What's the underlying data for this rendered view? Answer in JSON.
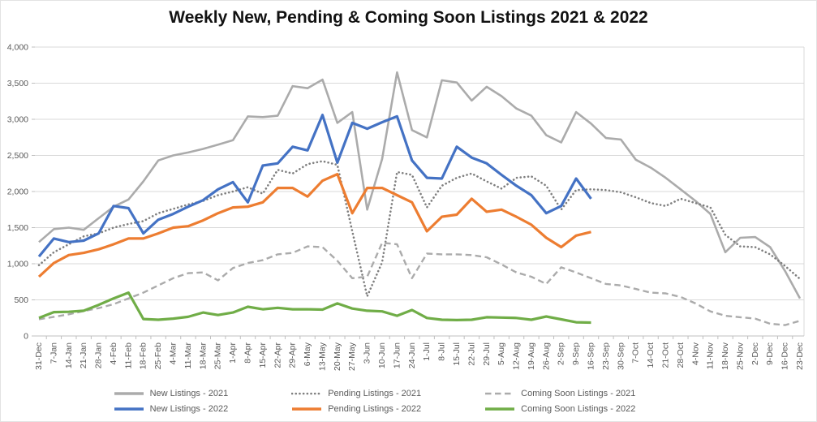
{
  "title": "Weekly New, Pending & Coming Soon Listings 2021 & 2022",
  "chart_data": {
    "type": "line",
    "title": "Weekly New, Pending & Coming Soon Listings 2021 & 2022",
    "grid": true,
    "legend_position": "bottom",
    "x_axis": {
      "label_rotation": -90
    },
    "y_axis": {
      "min": 0,
      "max": 4000,
      "step": 500,
      "tick_labels": [
        "4,000",
        "3,500",
        "3,000",
        "2,500",
        "2,000",
        "1,500",
        "1,000",
        "500",
        "0"
      ]
    },
    "categories": [
      "31-Dec",
      "7-Jan",
      "14-Jan",
      "21-Jan",
      "28-Jan",
      "4-Feb",
      "11-Feb",
      "18-Feb",
      "25-Feb",
      "4-Mar",
      "11-Mar",
      "18-Mar",
      "25-Mar",
      "1-Apr",
      "8-Apr",
      "15-Apr",
      "22-Apr",
      "29-Apr",
      "6-May",
      "13-May",
      "20-May",
      "27-May",
      "3-Jun",
      "10-Jun",
      "17-Jun",
      "24-Jun",
      "1-Jul",
      "8-Jul",
      "15-Jul",
      "22-Jul",
      "29-Jul",
      "5-Aug",
      "12-Aug",
      "19-Aug",
      "26-Aug",
      "2-Sep",
      "9-Sep",
      "16-Sep",
      "23-Sep",
      "30-Sep",
      "7-Oct",
      "14-Oct",
      "21-Oct",
      "28-Oct",
      "4-Nov",
      "11-Nov",
      "18-Nov",
      "25-Nov",
      "2-Dec",
      "9-Dec",
      "16-Dec",
      "23-Dec"
    ],
    "series": [
      {
        "name": "New Listings - 2021",
        "color": "#ababab",
        "line_style": "solid",
        "width": 2.6,
        "values": [
          1300,
          1480,
          1500,
          1470,
          1630,
          1790,
          1890,
          2140,
          2430,
          2500,
          2540,
          2590,
          2650,
          2710,
          3040,
          3030,
          3050,
          3460,
          3430,
          3550,
          2950,
          3100,
          1750,
          2450,
          3650,
          2850,
          2750,
          3540,
          3510,
          3260,
          3450,
          3320,
          3150,
          3050,
          2780,
          2680,
          3100,
          2940,
          2740,
          2720,
          2440,
          2330,
          2190,
          2030,
          1870,
          1690,
          1160,
          1360,
          1370,
          1230,
          900,
          520
        ]
      },
      {
        "name": "Pending Listings - 2021",
        "color": "#7f7f7f",
        "line_style": "dotted",
        "width": 2.6,
        "values": [
          980,
          1160,
          1270,
          1380,
          1420,
          1500,
          1550,
          1590,
          1700,
          1760,
          1820,
          1870,
          1950,
          2000,
          2060,
          1970,
          2300,
          2250,
          2380,
          2420,
          2370,
          1450,
          550,
          1020,
          2270,
          2230,
          1780,
          2080,
          2190,
          2250,
          2140,
          2040,
          2190,
          2210,
          2080,
          1750,
          2020,
          2030,
          2020,
          1990,
          1920,
          1840,
          1800,
          1900,
          1840,
          1780,
          1400,
          1240,
          1230,
          1130,
          970,
          790
        ]
      },
      {
        "name": "Coming Soon Listings - 2021",
        "color": "#ababab",
        "line_style": "dashed",
        "width": 2.4,
        "values": [
          230,
          265,
          300,
          345,
          385,
          440,
          520,
          600,
          700,
          800,
          870,
          880,
          770,
          940,
          1010,
          1050,
          1130,
          1150,
          1240,
          1230,
          1040,
          800,
          820,
          1290,
          1270,
          800,
          1140,
          1130,
          1130,
          1120,
          1090,
          990,
          880,
          820,
          720,
          950,
          880,
          800,
          720,
          700,
          650,
          600,
          590,
          540,
          450,
          340,
          280,
          260,
          240,
          170,
          150,
          210
        ]
      },
      {
        "name": "New Listings - 2022",
        "color": "#4472c4",
        "line_style": "solid",
        "width": 3.2,
        "values": [
          1100,
          1350,
          1300,
          1320,
          1420,
          1800,
          1770,
          1420,
          1610,
          1690,
          1790,
          1880,
          2030,
          2130,
          1850,
          2360,
          2390,
          2620,
          2570,
          3060,
          2400,
          2950,
          2870,
          2960,
          3040,
          2430,
          2190,
          2180,
          2620,
          2470,
          2390,
          2230,
          2080,
          1950,
          1700,
          1800,
          2180,
          1900
        ]
      },
      {
        "name": "Pending Listings - 2022",
        "color": "#ed7d31",
        "line_style": "solid",
        "width": 3.2,
        "values": [
          820,
          1010,
          1120,
          1150,
          1200,
          1270,
          1350,
          1350,
          1420,
          1500,
          1520,
          1600,
          1700,
          1780,
          1790,
          1850,
          2050,
          2050,
          1930,
          2150,
          2240,
          1700,
          2050,
          2050,
          1950,
          1850,
          1450,
          1650,
          1680,
          1900,
          1720,
          1750,
          1650,
          1540,
          1360,
          1230,
          1390,
          1440
        ]
      },
      {
        "name": "Coming Soon Listings - 2022",
        "color": "#70ad47",
        "line_style": "solid",
        "width": 3.2,
        "values": [
          250,
          330,
          335,
          350,
          430,
          520,
          600,
          235,
          225,
          240,
          265,
          325,
          290,
          325,
          405,
          370,
          390,
          370,
          370,
          365,
          450,
          380,
          350,
          340,
          280,
          360,
          250,
          225,
          220,
          225,
          260,
          255,
          250,
          225,
          270,
          230,
          190,
          185
        ]
      }
    ],
    "legend_rows": [
      [
        "New Listings - 2021",
        "Pending Listings - 2021",
        "Coming Soon Listings - 2021"
      ],
      [
        "New Listings - 2022",
        "Pending Listings - 2022",
        "Coming Soon Listings - 2022"
      ]
    ]
  }
}
